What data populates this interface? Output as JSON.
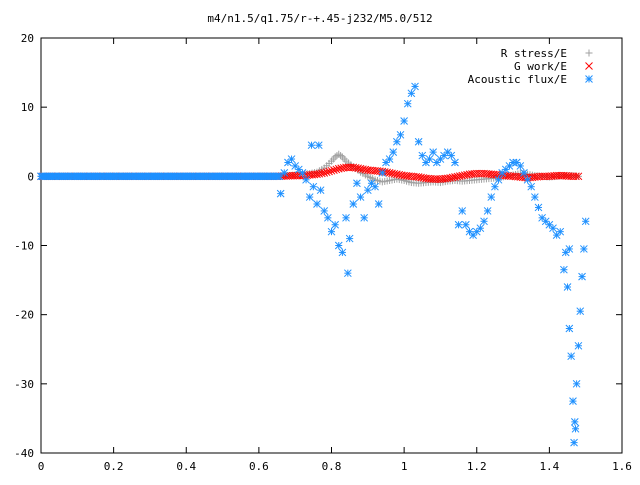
{
  "chart_data": {
    "type": "scatter",
    "title": "m4/n1.5/q1.75/r-+.45-j232/M5.0/512",
    "xlabel": "",
    "ylabel": "",
    "xlim": [
      0,
      1.6
    ],
    "ylim": [
      -40,
      20
    ],
    "x_ticks": [
      "0",
      "0.2",
      "0.4",
      "0.6",
      "0.8",
      "1",
      "1.2",
      "1.4",
      "1.6"
    ],
    "y_ticks": [
      "20",
      "10",
      "0",
      "-10",
      "-20",
      "-30",
      "-40"
    ],
    "grid": false,
    "legend_position": "top-right",
    "series": [
      {
        "name": "R stress/E",
        "marker": "plus",
        "color": "#a0a0a0",
        "points": [
          [
            0.0,
            0
          ],
          [
            0.1,
            0
          ],
          [
            0.2,
            0
          ],
          [
            0.3,
            0
          ],
          [
            0.4,
            0
          ],
          [
            0.5,
            0
          ],
          [
            0.6,
            0
          ],
          [
            0.65,
            0
          ],
          [
            0.68,
            0.1
          ],
          [
            0.7,
            0.2
          ],
          [
            0.72,
            0.3
          ],
          [
            0.74,
            0.4
          ],
          [
            0.76,
            0.6
          ],
          [
            0.78,
            1.2
          ],
          [
            0.8,
            2.2
          ],
          [
            0.81,
            2.8
          ],
          [
            0.82,
            3.2
          ],
          [
            0.83,
            2.8
          ],
          [
            0.84,
            2.2
          ],
          [
            0.86,
            1.4
          ],
          [
            0.88,
            0.6
          ],
          [
            0.9,
            0.0
          ],
          [
            0.92,
            -0.5
          ],
          [
            0.94,
            -0.8
          ],
          [
            0.96,
            -0.6
          ],
          [
            0.98,
            -0.4
          ],
          [
            1.0,
            -0.6
          ],
          [
            1.02,
            -0.9
          ],
          [
            1.04,
            -1.0
          ],
          [
            1.06,
            -0.9
          ],
          [
            1.08,
            -0.8
          ],
          [
            1.1,
            -0.9
          ],
          [
            1.12,
            -0.7
          ],
          [
            1.14,
            -0.6
          ],
          [
            1.16,
            -0.7
          ],
          [
            1.18,
            -0.6
          ],
          [
            1.2,
            -0.5
          ],
          [
            1.22,
            -0.4
          ],
          [
            1.24,
            -0.3
          ],
          [
            1.26,
            -0.2
          ],
          [
            1.28,
            0.0
          ],
          [
            1.3,
            0.2
          ],
          [
            1.32,
            0.4
          ],
          [
            1.34,
            0.3
          ],
          [
            1.36,
            0.1
          ],
          [
            1.38,
            0.0
          ],
          [
            1.4,
            -0.1
          ],
          [
            1.42,
            0.0
          ],
          [
            1.44,
            0.1
          ],
          [
            1.46,
            0.1
          ],
          [
            1.48,
            0.0
          ]
        ]
      },
      {
        "name": "G work/E",
        "marker": "cross",
        "color": "#ff0000",
        "points": [
          [
            0.0,
            0
          ],
          [
            0.1,
            0
          ],
          [
            0.2,
            0
          ],
          [
            0.3,
            0
          ],
          [
            0.4,
            0
          ],
          [
            0.5,
            0
          ],
          [
            0.6,
            0
          ],
          [
            0.65,
            0
          ],
          [
            0.7,
            0.1
          ],
          [
            0.72,
            0.1
          ],
          [
            0.74,
            0.2
          ],
          [
            0.76,
            0.3
          ],
          [
            0.78,
            0.5
          ],
          [
            0.8,
            0.8
          ],
          [
            0.82,
            1.1
          ],
          [
            0.84,
            1.3
          ],
          [
            0.86,
            1.3
          ],
          [
            0.88,
            1.1
          ],
          [
            0.9,
            0.9
          ],
          [
            0.92,
            0.8
          ],
          [
            0.94,
            0.7
          ],
          [
            0.96,
            0.5
          ],
          [
            0.98,
            0.3
          ],
          [
            1.0,
            0.1
          ],
          [
            1.02,
            0.0
          ],
          [
            1.04,
            -0.1
          ],
          [
            1.06,
            -0.3
          ],
          [
            1.08,
            -0.4
          ],
          [
            1.1,
            -0.4
          ],
          [
            1.12,
            -0.3
          ],
          [
            1.14,
            -0.1
          ],
          [
            1.16,
            0.1
          ],
          [
            1.18,
            0.3
          ],
          [
            1.2,
            0.4
          ],
          [
            1.22,
            0.4
          ],
          [
            1.24,
            0.3
          ],
          [
            1.26,
            0.2
          ],
          [
            1.28,
            0.1
          ],
          [
            1.3,
            0.0
          ],
          [
            1.32,
            -0.1
          ],
          [
            1.34,
            -0.2
          ],
          [
            1.36,
            -0.1
          ],
          [
            1.38,
            0.0
          ],
          [
            1.4,
            0.0
          ],
          [
            1.42,
            0.1
          ],
          [
            1.44,
            0.1
          ],
          [
            1.46,
            0.0
          ],
          [
            1.48,
            0.0
          ]
        ]
      },
      {
        "name": "Acoustic flux/E",
        "marker": "star",
        "color": "#1e90ff",
        "points": [
          [
            0.0,
            0
          ],
          [
            0.1,
            0
          ],
          [
            0.2,
            0
          ],
          [
            0.3,
            0
          ],
          [
            0.4,
            0
          ],
          [
            0.5,
            0
          ],
          [
            0.6,
            0
          ],
          [
            0.66,
            -2.5
          ],
          [
            0.67,
            0.5
          ],
          [
            0.68,
            2.0
          ],
          [
            0.69,
            2.5
          ],
          [
            0.7,
            1.5
          ],
          [
            0.71,
            1.0
          ],
          [
            0.72,
            0.5
          ],
          [
            0.73,
            -0.5
          ],
          [
            0.74,
            -3.0
          ],
          [
            0.745,
            4.5
          ],
          [
            0.75,
            -1.5
          ],
          [
            0.76,
            -4.0
          ],
          [
            0.765,
            4.5
          ],
          [
            0.77,
            -2.0
          ],
          [
            0.78,
            -5.0
          ],
          [
            0.79,
            -6.0
          ],
          [
            0.8,
            -8.0
          ],
          [
            0.81,
            -7.0
          ],
          [
            0.82,
            -10.0
          ],
          [
            0.83,
            -11.0
          ],
          [
            0.84,
            -6.0
          ],
          [
            0.845,
            -14.0
          ],
          [
            0.85,
            -9.0
          ],
          [
            0.86,
            -4.0
          ],
          [
            0.87,
            -1.0
          ],
          [
            0.88,
            -3.0
          ],
          [
            0.89,
            -6.0
          ],
          [
            0.9,
            -2.0
          ],
          [
            0.91,
            -1.0
          ],
          [
            0.92,
            -1.5
          ],
          [
            0.93,
            -4.0
          ],
          [
            0.94,
            0.5
          ],
          [
            0.95,
            2.0
          ],
          [
            0.96,
            2.5
          ],
          [
            0.97,
            3.5
          ],
          [
            0.98,
            5.0
          ],
          [
            0.99,
            6.0
          ],
          [
            1.0,
            8.0
          ],
          [
            1.01,
            10.5
          ],
          [
            1.02,
            12.0
          ],
          [
            1.03,
            13.0
          ],
          [
            1.04,
            5.0
          ],
          [
            1.05,
            3.0
          ],
          [
            1.06,
            2.0
          ],
          [
            1.07,
            2.5
          ],
          [
            1.08,
            3.5
          ],
          [
            1.09,
            2.0
          ],
          [
            1.1,
            2.5
          ],
          [
            1.11,
            3.0
          ],
          [
            1.12,
            3.5
          ],
          [
            1.13,
            3.0
          ],
          [
            1.14,
            2.0
          ],
          [
            1.15,
            -7.0
          ],
          [
            1.16,
            -5.0
          ],
          [
            1.17,
            -7.0
          ],
          [
            1.18,
            -8.0
          ],
          [
            1.19,
            -8.5
          ],
          [
            1.2,
            -8.0
          ],
          [
            1.21,
            -7.5
          ],
          [
            1.22,
            -6.5
          ],
          [
            1.23,
            -5.0
          ],
          [
            1.24,
            -3.0
          ],
          [
            1.25,
            -1.5
          ],
          [
            1.26,
            -0.5
          ],
          [
            1.27,
            0.5
          ],
          [
            1.28,
            1.0
          ],
          [
            1.29,
            1.5
          ],
          [
            1.3,
            2.0
          ],
          [
            1.31,
            2.0
          ],
          [
            1.32,
            1.5
          ],
          [
            1.33,
            0.5
          ],
          [
            1.34,
            -0.5
          ],
          [
            1.35,
            -1.5
          ],
          [
            1.36,
            -3.0
          ],
          [
            1.37,
            -4.5
          ],
          [
            1.38,
            -6.0
          ],
          [
            1.39,
            -6.5
          ],
          [
            1.4,
            -7.0
          ],
          [
            1.41,
            -7.5
          ],
          [
            1.42,
            -8.5
          ],
          [
            1.43,
            -8.0
          ],
          [
            1.44,
            -13.5
          ],
          [
            1.45,
            -16.0
          ],
          [
            1.455,
            -22.0
          ],
          [
            1.46,
            -26.0
          ],
          [
            1.465,
            -32.5
          ],
          [
            1.47,
            -35.5
          ],
          [
            1.475,
            -30.0
          ],
          [
            1.48,
            -24.5
          ],
          [
            1.485,
            -19.5
          ],
          [
            1.49,
            -14.5
          ],
          [
            1.495,
            -10.5
          ],
          [
            1.5,
            -6.5
          ],
          [
            1.445,
            -11.0
          ],
          [
            1.455,
            -10.5
          ],
          [
            1.468,
            -38.5
          ],
          [
            1.472,
            -36.5
          ]
        ]
      }
    ]
  }
}
